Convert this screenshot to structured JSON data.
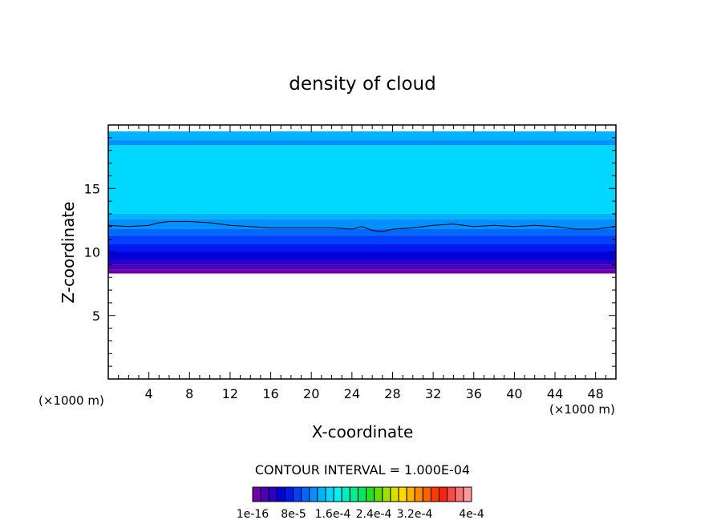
{
  "chart_data": {
    "type": "heatmap",
    "title": "density of cloud",
    "xlabel": "X-coordinate",
    "ylabel": "Z-coordinate",
    "x_unit_left": "(×1000 m)",
    "x_unit_right": "(×1000 m)",
    "xlim": [
      0,
      50
    ],
    "ylim": [
      0,
      20
    ],
    "x_ticks": [
      4,
      8,
      12,
      16,
      20,
      24,
      28,
      32,
      36,
      40,
      44,
      48
    ],
    "y_ticks": [
      5,
      10,
      15
    ],
    "contour_interval_text": "CONTOUR INTERVAL = 1.000E-04",
    "colorbar_labels": [
      "1e-16",
      "8e-5",
      "1.6e-4",
      "2.4e-4",
      "3.2e-4",
      "4e-4"
    ],
    "colorbar_colors": [
      "#7000a8",
      "#4b00b8",
      "#2800c8",
      "#0000dc",
      "#0018ee",
      "#0040ff",
      "#0068ff",
      "#0090ff",
      "#00b4ff",
      "#00d8ff",
      "#00f0f0",
      "#00f0c0",
      "#00f090",
      "#00e860",
      "#20e020",
      "#60e000",
      "#a0e000",
      "#d8e000",
      "#ffd800",
      "#ffb000",
      "#ff8800",
      "#ff6000",
      "#ff3800",
      "#ff2010",
      "#ff4848",
      "#ff7070",
      "#ff9898"
    ],
    "cloud_layers": [
      {
        "z_bottom": 18.8,
        "z_top": 19.5,
        "color": "#00b4ff"
      },
      {
        "z_bottom": 18.4,
        "z_top": 18.8,
        "color": "#0090ff"
      },
      {
        "z_bottom": 13.0,
        "z_top": 18.4,
        "color": "#00d8ff"
      },
      {
        "z_bottom": 12.6,
        "z_top": 13.0,
        "color": "#00b4ff"
      },
      {
        "z_bottom": 11.8,
        "z_top": 12.6,
        "color": "#0090ff"
      },
      {
        "z_bottom": 11.3,
        "z_top": 11.8,
        "color": "#0068ff"
      },
      {
        "z_bottom": 10.6,
        "z_top": 11.3,
        "color": "#0040ff"
      },
      {
        "z_bottom": 10.0,
        "z_top": 10.6,
        "color": "#0018ee"
      },
      {
        "z_bottom": 9.4,
        "z_top": 10.0,
        "color": "#0000dc"
      },
      {
        "z_bottom": 9.0,
        "z_top": 9.4,
        "color": "#2800c8"
      },
      {
        "z_bottom": 8.6,
        "z_top": 9.0,
        "color": "#4b00b8"
      },
      {
        "z_bottom": 8.3,
        "z_top": 8.6,
        "color": "#7000a8"
      }
    ],
    "contour_line": {
      "x": [
        0,
        2,
        4,
        5,
        6,
        7,
        8,
        10,
        12,
        14,
        16,
        18,
        20,
        22,
        24,
        25,
        26,
        27,
        28,
        30,
        32,
        34,
        36,
        38,
        40,
        42,
        44,
        46,
        48,
        50
      ],
      "z": [
        12.1,
        12.0,
        12.1,
        12.3,
        12.4,
        12.4,
        12.4,
        12.3,
        12.1,
        12.0,
        11.9,
        11.9,
        11.9,
        11.9,
        11.8,
        12.0,
        11.7,
        11.6,
        11.8,
        11.9,
        12.1,
        12.2,
        12.0,
        12.1,
        12.0,
        12.1,
        12.0,
        11.8,
        11.8,
        12.0
      ]
    },
    "grid": false,
    "legend": "bottom-colorbar"
  }
}
